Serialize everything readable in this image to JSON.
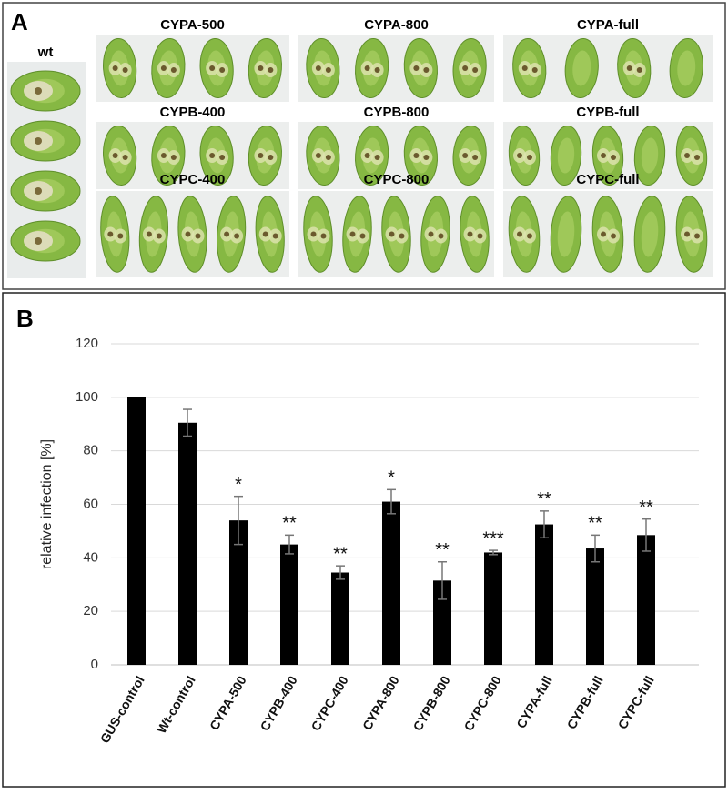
{
  "panel_a": {
    "label": "A",
    "wt": "wt",
    "groups": [
      "CYPA-500",
      "CYPA-800",
      "CYPA-full",
      "CYPB-400",
      "CYPB-800",
      "CYPB-full",
      "CYPC-400",
      "CYPC-800",
      "CYPC-full"
    ]
  },
  "panel_b": {
    "label": "B"
  },
  "chart_data": {
    "type": "bar",
    "ylabel": "relative infection [%]",
    "categories": [
      "GUS-control",
      "Wt-control",
      "CYPA-500",
      "CYPB-400",
      "CYPC-400",
      "CYPA-800",
      "CYPB-800",
      "CYPC-800",
      "CYPA-full",
      "CYPB-full",
      "CYPC-full"
    ],
    "values": [
      100,
      90.5,
      54,
      45,
      34.5,
      61,
      31.5,
      42,
      52.5,
      43.5,
      48.5
    ],
    "errors": [
      null,
      5,
      9,
      3.5,
      2.5,
      4.5,
      7,
      0.8,
      5,
      5,
      6
    ],
    "annotations": [
      null,
      null,
      "*",
      "**",
      "**",
      "*",
      "**",
      "***",
      "**",
      "**",
      "**"
    ],
    "color": "#000000",
    "ylim": [
      0,
      120
    ],
    "yticks": [
      0,
      20,
      40,
      60,
      80,
      100,
      120
    ],
    "grid": true
  }
}
